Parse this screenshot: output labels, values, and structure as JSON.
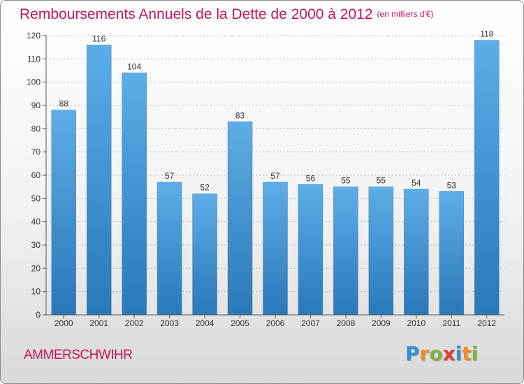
{
  "header": {
    "title": "Remboursements Annuels de la Dette de 2000 à 2012",
    "unit": "(en milliers d'€)"
  },
  "footer": {
    "town": "AMMERSCHWIHR",
    "brand_letters": [
      {
        "char": "P",
        "color": "#2f8fd8"
      },
      {
        "char": "r",
        "color": "#f08a24"
      },
      {
        "char": "o",
        "color": "#7cb342"
      },
      {
        "char": "x",
        "color": "#e53935"
      },
      {
        "char": "i",
        "color": "#2f8fd8"
      },
      {
        "char": "t",
        "color": "#f08a24"
      },
      {
        "char": "i",
        "color": "#7cb342"
      }
    ]
  },
  "chart_data": {
    "type": "bar",
    "categories": [
      "2000",
      "2001",
      "2002",
      "2003",
      "2004",
      "2005",
      "2006",
      "2007",
      "2008",
      "2009",
      "2010",
      "2011",
      "2012"
    ],
    "values": [
      88,
      116,
      104,
      57,
      52,
      83,
      57,
      56,
      55,
      55,
      54,
      53,
      118
    ],
    "value_labels": [
      "88",
      "116",
      "104",
      "57",
      "52",
      "83",
      "57",
      "56",
      "55",
      "55",
      "54",
      "53",
      "118"
    ],
    "title": "Remboursements Annuels de la Dette de 2000 à 2012",
    "xlabel": "",
    "ylabel": "",
    "ylim": [
      0,
      120
    ],
    "yticks": [
      0,
      10,
      20,
      30,
      40,
      50,
      60,
      70,
      80,
      90,
      100,
      110,
      120
    ],
    "ytick_labels": [
      "0",
      "10",
      "20",
      "30",
      "40",
      "50",
      "60",
      "70",
      "80",
      "90",
      "100",
      "110",
      "120"
    ],
    "grid": true,
    "legend": "none",
    "bar_color_top": "#5dade8",
    "bar_color_bottom": "#2a78b8"
  }
}
